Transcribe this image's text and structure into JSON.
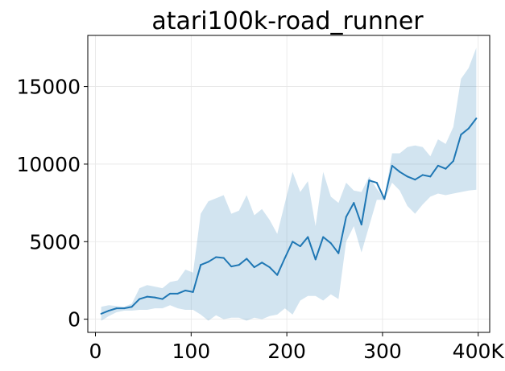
{
  "chart_data": {
    "type": "line",
    "title": "atari100k-road_runner",
    "xlabel": "",
    "ylabel": "",
    "xlim": [
      -8,
      412
    ],
    "ylim": [
      -850,
      18300
    ],
    "grid": true,
    "x_ticks": [
      {
        "value": 0,
        "label": "0"
      },
      {
        "value": 100,
        "label": "100"
      },
      {
        "value": 200,
        "label": "200"
      },
      {
        "value": 300,
        "label": "300"
      },
      {
        "value": 400,
        "label": "400K"
      }
    ],
    "y_ticks": [
      {
        "value": 0,
        "label": "0"
      },
      {
        "value": 5000,
        "label": "5000"
      },
      {
        "value": 10000,
        "label": "10000"
      },
      {
        "value": 15000,
        "label": "15000"
      }
    ],
    "colors": {
      "line": "#1f77b4",
      "band": "#1f77b4"
    },
    "band_opacity": 0.2,
    "series": [
      {
        "x": [
          6,
          14,
          22,
          30,
          38,
          46,
          54,
          62,
          70,
          78,
          86,
          94,
          102,
          110,
          118,
          126,
          134,
          142,
          150,
          158,
          166,
          174,
          182,
          190,
          198,
          206,
          214,
          222,
          230,
          238,
          246,
          254,
          262,
          270,
          278,
          286,
          294,
          302,
          310,
          318,
          326,
          334,
          342,
          350,
          358,
          366,
          374,
          382,
          390,
          398
        ],
        "y": [
          350,
          550,
          700,
          700,
          800,
          1300,
          1450,
          1400,
          1300,
          1650,
          1650,
          1850,
          1750,
          3500,
          3700,
          4000,
          3950,
          3400,
          3500,
          3900,
          3350,
          3650,
          3350,
          2850,
          3950,
          5000,
          4700,
          5300,
          3850,
          5300,
          4900,
          4250,
          6600,
          7500,
          6100,
          8950,
          8800,
          7750,
          9900,
          9500,
          9200,
          9000,
          9300,
          9200,
          9900,
          9700,
          10200,
          11900,
          12300,
          12950
        ],
        "lower": [
          -100,
          200,
          450,
          550,
          550,
          600,
          600,
          700,
          700,
          900,
          700,
          600,
          600,
          300,
          -100,
          250,
          0,
          100,
          100,
          -100,
          100,
          0,
          200,
          300,
          700,
          300,
          1200,
          1500,
          1500,
          1200,
          1600,
          1300,
          5000,
          6000,
          4300,
          6000,
          7700,
          7700,
          8800,
          8300,
          7300,
          6800,
          7400,
          7900,
          8100,
          8000,
          8100,
          8200,
          8300,
          8350
        ],
        "upper": [
          800,
          900,
          850,
          800,
          1000,
          2000,
          2200,
          2100,
          2000,
          2400,
          2500,
          3200,
          3000,
          6800,
          7600,
          7800,
          8000,
          6800,
          7000,
          8000,
          6700,
          7100,
          6400,
          5500,
          7500,
          9500,
          8200,
          8900,
          6000,
          9500,
          7900,
          7500,
          8800,
          8300,
          8200,
          9200,
          8400,
          7800,
          10700,
          10700,
          11100,
          11200,
          11100,
          10500,
          11600,
          11300,
          12400,
          15500,
          16200,
          17500
        ]
      }
    ]
  }
}
